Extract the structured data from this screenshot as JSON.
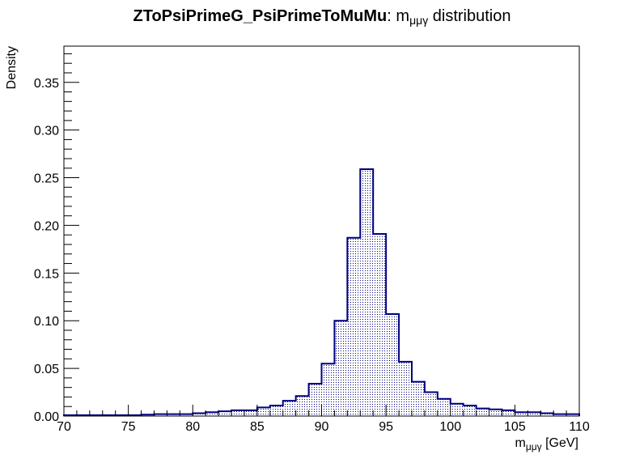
{
  "chart_data": {
    "type": "histogram",
    "title": {
      "process": "ZToPsiPrimeG_PsiPrimeToMuMu",
      "sep": ": ",
      "var_main": "m",
      "var_sub": "μμγ",
      "rest": " distribution"
    },
    "xlabel": {
      "main": "m",
      "sub": "μμγ",
      "rest": " [GeV]"
    },
    "ylabel": "Density",
    "xlim": [
      70,
      110
    ],
    "ylim": [
      0,
      0.388
    ],
    "x_ticks": [
      "70",
      "75",
      "80",
      "85",
      "90",
      "95",
      "100",
      "105",
      "110"
    ],
    "y_ticks": [
      "0.00",
      "0.05",
      "0.10",
      "0.15",
      "0.20",
      "0.25",
      "0.30",
      "0.35"
    ],
    "bin_width": 1,
    "bin_edges_start": 70,
    "values": [
      0.001,
      0.001,
      0.001,
      0.001,
      0.001,
      0.001,
      0.0015,
      0.002,
      0.002,
      0.002,
      0.003,
      0.004,
      0.005,
      0.006,
      0.006,
      0.009,
      0.011,
      0.016,
      0.021,
      0.034,
      0.055,
      0.1,
      0.187,
      0.259,
      0.191,
      0.107,
      0.057,
      0.036,
      0.025,
      0.018,
      0.013,
      0.011,
      0.008,
      0.007,
      0.006,
      0.004,
      0.004,
      0.003,
      0.002,
      0.002
    ],
    "grid": false,
    "colors": {
      "line": "#000080",
      "fill_pattern": "#000080",
      "frame": "#000000"
    }
  }
}
